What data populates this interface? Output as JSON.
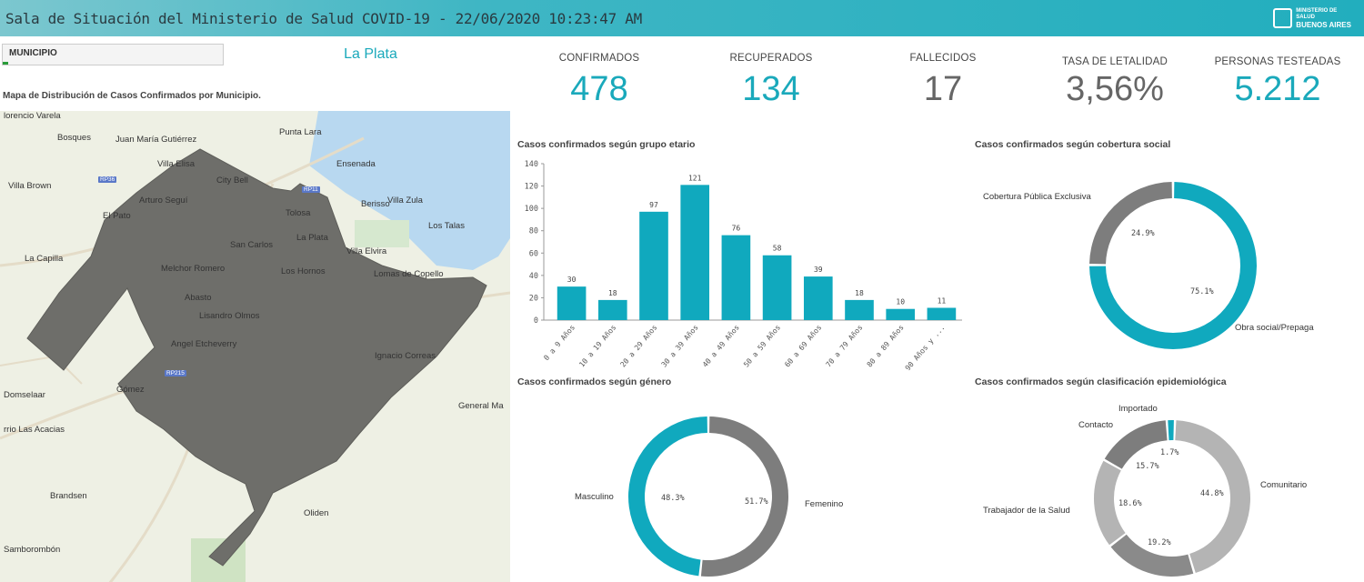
{
  "header": {
    "title": "Sala de Situación del Ministerio de Salud COVID-19 - 22/06/2020 10:23:47 AM",
    "logo_line1": "MINISTERIO DE SALUD",
    "logo_line2": "BUENOS AIRES"
  },
  "filter": {
    "label": "MUNICIPIO",
    "selected": "La Plata"
  },
  "map": {
    "title": "Mapa de Distribución de Casos Confirmados por Municipio.",
    "places": [
      "lorencio Varela",
      "Bosques",
      "Juan María Gutiérrez",
      "Punta Lara",
      "Villa Elisa",
      "Ensenada",
      "City Bell",
      "Berisso",
      "Villa Zula",
      "Villa Brown",
      "Arturo Seguí",
      "El Pato",
      "Tolosa",
      "Los Talas",
      "San Carlos",
      "La Plata",
      "Villa Elvira",
      "La Capilla",
      "Melchor Romero",
      "Los Hornos",
      "Lomas de Copello",
      "Abasto",
      "Lisandro Olmos",
      "Angel Etcheverry",
      "Ignacio Correas",
      "Domselaar",
      "Gómez",
      "General Ma",
      "rrio Las Acacias",
      "Brandsen",
      "Oliden",
      "Samborombón"
    ],
    "roads": [
      "RP36",
      "RP11",
      "RP215"
    ]
  },
  "kpis": [
    {
      "label": "CONFIRMADOS",
      "value": "478",
      "color": "#1aa9bb"
    },
    {
      "label": "RECUPERADOS",
      "value": "134",
      "color": "#1aa9bb"
    },
    {
      "label": "FALLECIDOS",
      "value": "17",
      "color": "#666666"
    },
    {
      "label": "TASA DE LETALIDAD",
      "value": "3,56%",
      "color": "#666666"
    },
    {
      "label": "PERSONAS TESTEADAS",
      "value": "5.212",
      "color": "#1aa9bb"
    }
  ],
  "chart_data": [
    {
      "type": "bar",
      "title": "Casos confirmados según grupo etario",
      "categories": [
        "0 a 9 Años",
        "10 a 19 Años",
        "20 a 29 Años",
        "30 a 39 Años",
        "40 a 49 Años",
        "50 a 59 Años",
        "60 a 69 Años",
        "70 a 79 Años",
        "80 a 89 Años",
        "90 Años y ..."
      ],
      "values": [
        30,
        18,
        97,
        121,
        76,
        58,
        39,
        18,
        10,
        11
      ],
      "yticks": [
        0,
        20,
        40,
        60,
        80,
        100,
        120,
        140
      ],
      "ylim": [
        0,
        140
      ],
      "color": "#10a9be"
    },
    {
      "type": "pie",
      "title": "Casos confirmados según cobertura social",
      "slices": [
        {
          "label": "Obra social/Prepaga",
          "value": 75.1,
          "pct": "75.1%",
          "color": "#10a9be"
        },
        {
          "label": "Cobertura Pública Exclusiva",
          "value": 24.9,
          "pct": "24.9%",
          "color": "#7d7d7d"
        }
      ]
    },
    {
      "type": "pie",
      "title": "Casos confirmados según género",
      "slices": [
        {
          "label": "Femenino",
          "value": 51.7,
          "pct": "51.7%",
          "color": "#7d7d7d"
        },
        {
          "label": "Masculino",
          "value": 48.3,
          "pct": "48.3%",
          "color": "#10a9be"
        }
      ]
    },
    {
      "type": "pie",
      "title": "Casos confirmados según clasificación epidemiológica",
      "slices": [
        {
          "label": "Importado",
          "value": 1.7,
          "pct": "1.7%",
          "color": "#10a9be"
        },
        {
          "label": "Comunitario",
          "value": 44.8,
          "pct": "44.8%",
          "color": "#b4b4b4"
        },
        {
          "label": "",
          "value": 19.2,
          "pct": "19.2%",
          "color": "#8a8a8a"
        },
        {
          "label": "Trabajador de la Salud",
          "value": 18.6,
          "pct": "18.6%",
          "color": "#b4b4b4"
        },
        {
          "label": "Contacto",
          "value": 15.7,
          "pct": "15.7%",
          "color": "#7d7d7d"
        }
      ]
    }
  ]
}
